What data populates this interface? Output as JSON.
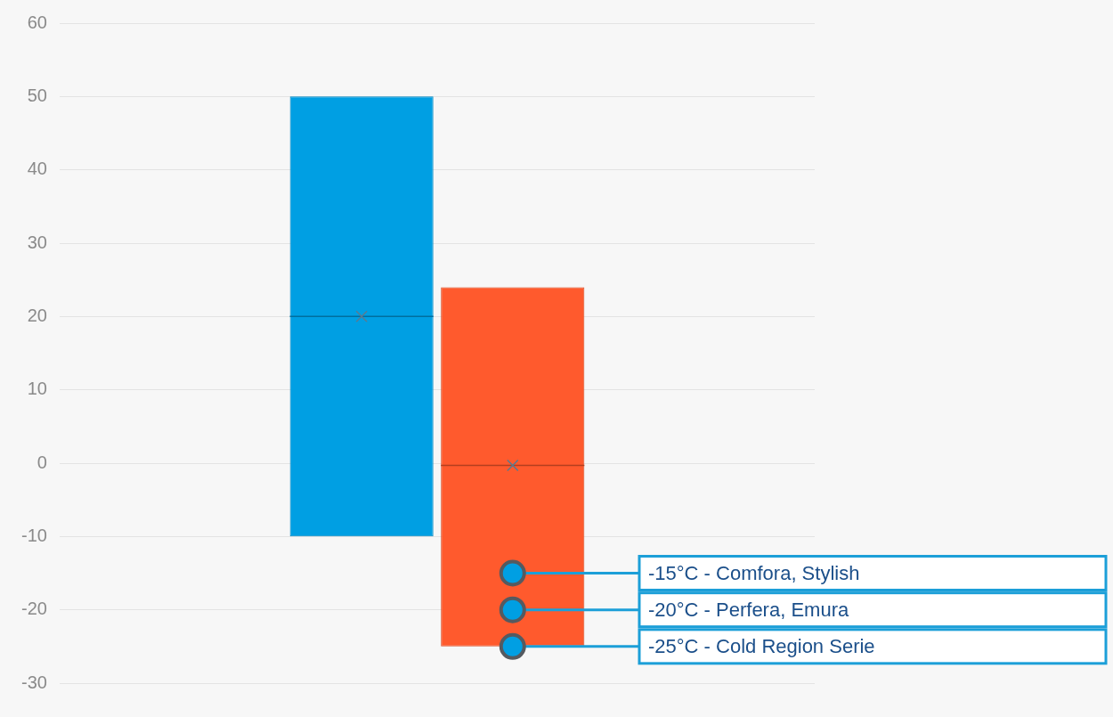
{
  "chart_data": {
    "type": "floating_bar",
    "categories": [
      null
    ],
    "series": [
      {
        "color": "#009fe3",
        "values": [
          [
            -10,
            50
          ]
        ],
        "mean": [
          20
        ]
      },
      {
        "color": "#ff5a2d",
        "values": [
          [
            -25,
            24
          ]
        ],
        "mean": [
          -0.3
        ]
      }
    ],
    "ylim": [
      -30,
      60
    ],
    "yticks": [
      -30,
      -20,
      -10,
      0,
      10,
      20,
      30,
      40,
      50,
      60
    ],
    "grid": true,
    "tick_labels": "y",
    "annotations": [
      {
        "value": -15,
        "text": "-15°C - Comfora, Stylish"
      },
      {
        "value": -20,
        "text": "-20°C - Perfera, Emura"
      },
      {
        "value": -25,
        "text": "-25°C - Cold Region Serie"
      }
    ]
  }
}
